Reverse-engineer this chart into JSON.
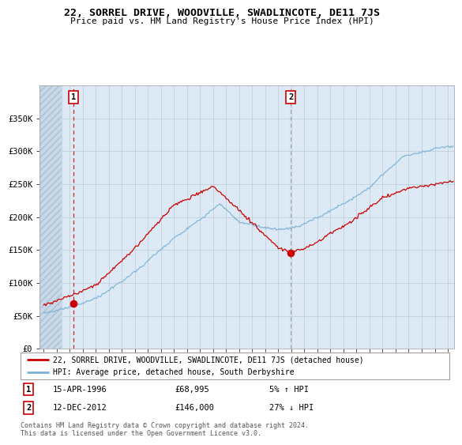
{
  "title": "22, SORREL DRIVE, WOODVILLE, SWADLINCOTE, DE11 7JS",
  "subtitle": "Price paid vs. HM Land Registry's House Price Index (HPI)",
  "sale1_yr": 1996.29,
  "sale1_price": 68995,
  "sale2_yr": 2012.95,
  "sale2_price": 146000,
  "legend_line1": "22, SORREL DRIVE, WOODVILLE, SWADLINCOTE, DE11 7JS (detached house)",
  "legend_line2": "HPI: Average price, detached house, South Derbyshire",
  "footer": "Contains HM Land Registry data © Crown copyright and database right 2024.\nThis data is licensed under the Open Government Licence v3.0.",
  "property_color": "#cc0000",
  "hpi_color": "#7ab0d4",
  "sale1_vline_color": "#cc0000",
  "sale2_vline_color": "#888888",
  "plot_bg_color": "#ddeeff",
  "fig_bg_color": "#ffffff",
  "hatch_color": "#bbbbbb",
  "ylim": [
    0,
    400000
  ],
  "xlim_start": 1993.7,
  "xlim_end": 2025.5,
  "yticks": [
    0,
    50000,
    100000,
    150000,
    200000,
    250000,
    300000,
    350000
  ],
  "ytick_labels": [
    "£0",
    "£50K",
    "£100K",
    "£150K",
    "£200K",
    "£250K",
    "£300K",
    "£350K"
  ]
}
